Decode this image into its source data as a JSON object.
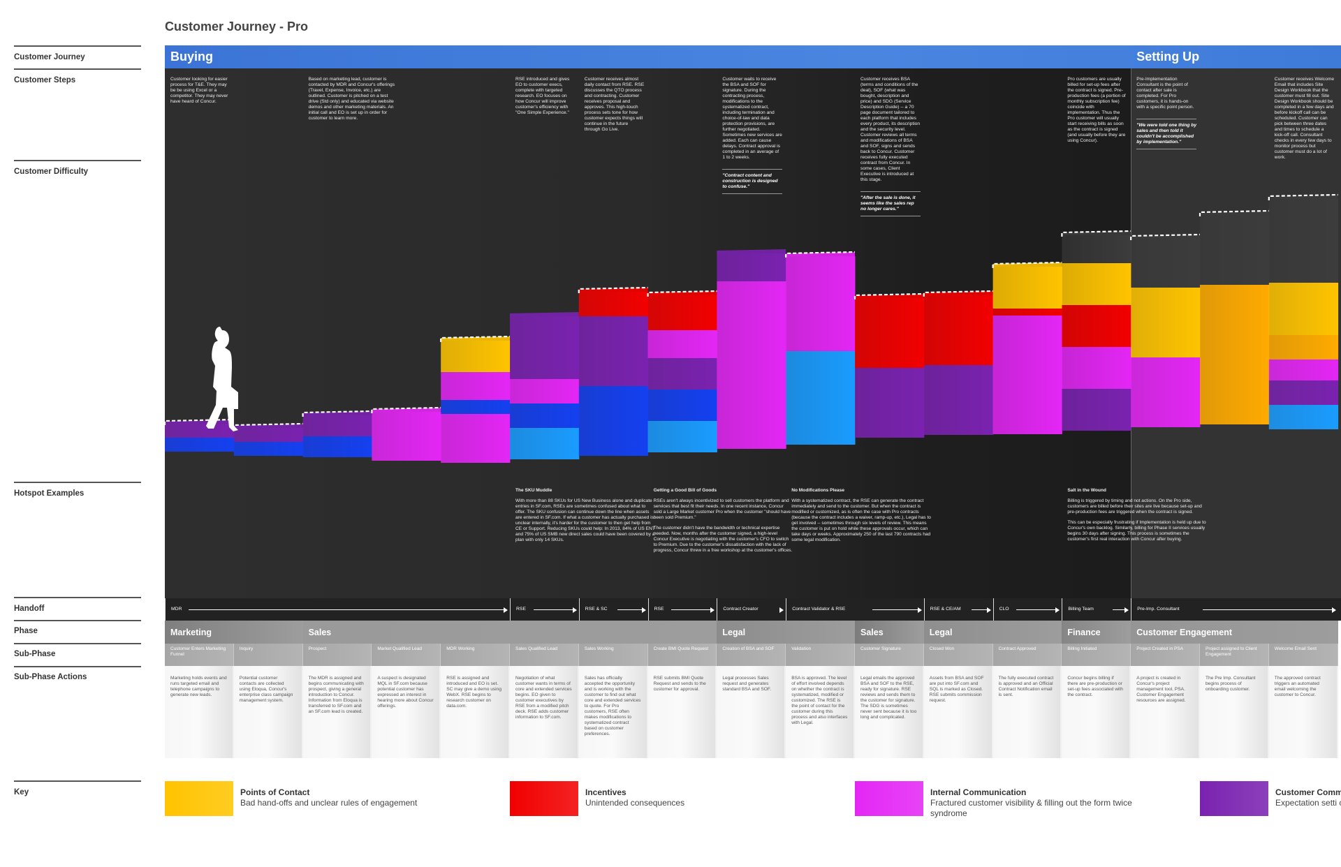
{
  "title": "Customer Journey - Pro",
  "row_labels": {
    "customer_journey": "Customer Journey",
    "customer_steps": "Customer Steps",
    "customer_difficulty": "Customer Difficulty",
    "hotspot_examples": "Hotspot Examples",
    "handoff": "Handoff",
    "phase": "Phase",
    "sub_phase": "Sub-Phase",
    "sub_phase_actions": "Sub-Phase Actions",
    "key": "Key"
  },
  "journey_stages": [
    {
      "label": "Buying",
      "start_col": 0
    },
    {
      "label": "Setting Up",
      "start_col": 14
    }
  ],
  "columns": [
    {
      "sub_phase": "Customer Enters Marketing Funnel",
      "action": "Marketing holds events and runs targeted email and telephone campaigns to generate new leads.",
      "step": "Customer looking for easier process for T&E. They may be be using Excel or a competitor. They may never have heard of Concur."
    },
    {
      "sub_phase": "Inquiry",
      "action": "Potential customer contacts are collected using Eloqua, Concur's enterprise class campaign management system."
    },
    {
      "sub_phase": "Prospect",
      "action": "The MDR is assigned and begins communicating with prospect, giving a general introduction to Concur. Information from Eloqua is transferred to SF.com and an SF.com lead is created.",
      "step": "Based on marketing lead, customer is contacted by MDR and Concur's offerings (Travel, Expense, Invoice, etc.) are outlined. Customer is pitched on a test drive (Std only) and educated via website demos and other marketing materials.  An initial call and EO is set up in order for customer to learn more.",
      "wide": true
    },
    {
      "sub_phase": "Market Qualified Lead",
      "action": "A suspect is designated MQL in SF.com because potential customer has expressed an interest in hearing more about Concur offerings."
    },
    {
      "sub_phase": "MDR Working",
      "action": "RSE is assigned and introduced and EO is set. SC may give a demo using WebX. RSE begins to research customer on data.com."
    },
    {
      "sub_phase": "Sales Qualified Lead",
      "action": "Negotiation of what customer wants in terms of core and  extended services begins. EO given to customer executives by RSE from a modified pitch deck. RSE adds customer information to SF.com.",
      "step": "RSE introduced and gives EO to customer execs, complete with targeted research. EO focuses on how Concur will improve customer's efficiency with \"One Simple Experience.\"",
      "hotspot": {
        "title": "The SKU Muddle",
        "paragraphs": [
          "With more than 88 SKUs for US New Business alone and duplicate entries in SF.com, RSEs are sometimes confused about what to offer. The SKU confusion can continue down the line when assets are entered in SF.com. If what a customer has actually purchased is unclear internally, it's harder for the customer to then get help from CE or Support. Reducing SKUs could help:  In 2013, 84% of US ENT and 75% of US SMB new direct sales could have been covered by a plan with only 14 SKUs."
        ]
      }
    },
    {
      "sub_phase": "Sales Working",
      "action": "Sales has officially accepted the opportunity and is working with the customer to find out what core and extended services to quote. For Pro customers, RSE often makes modifications to systematized contract based on customer preferences.",
      "step": "Customer receives almost daily contact from RSE.  RSE discusses the QTO process and contracting. Customer receives proposal and approves. This high-touch process sets tone for how customer expects things will continue in the future through Go Live."
    },
    {
      "sub_phase": "Create BMI Quote Request",
      "action": "RSE submits BMI Quote Request and sends to the customer for approval.",
      "hotspot": {
        "title": "Getting a Good Bill of Goods",
        "paragraphs": [
          "RSEs aren't always incentivized to sell customers the platform and services that best fit their needs. In one recent instance, Concur sold a Large Market customer Pro when the customer \"should have been sold Premium.\"",
          "The customer didn't have the bandwidth or technical expertise needed. Now, months after the customer signed, a high-level Concur Executive is negotiating with the customer's CFO to switch to Premium. Due to the customer's dissatisfaction with the lack of progress, Concur threw in a free workshop at the customer's offices."
        ]
      }
    },
    {
      "sub_phase": "Creation of BSA and SOF",
      "action": "Legal processes Sales request and generates standard BSA and SOF.",
      "step": "Customer waits to receive the BSA and SOF for signature. During the contracting process, modifications to the systematized contract, including termination and choice-of-law and data protection provisions, are further negotiated. Sometimes new services are added. Each can cause delays. Contract approval is completed in an average of 1 to 2 weeks.",
      "quote": "\"Contract content and construction is designed to confuse.\""
    },
    {
      "sub_phase": "Validation",
      "action": "BSA is approved. The level of effort involved depends on whether the contract is systematized, modified or customized. The RSE is the point of contact for the customer during this process and also interfaces with Legal.",
      "hotspot": {
        "title": "No Modifications Please",
        "paragraphs": [
          "With a systematized contract, the RSE can generate the contract immediately and send to the customer.  But when the contract is modified or customized, as is often the case with Pro contracts (because the contract includes a waiver, ramp-up, etc.), Legal has to get involved -- sometimes through six levels of review. This means the customer is put on hold while these approvals occur, which can take days or weeks. Approximately 250 of the last 790 contracts had some legal modification."
        ]
      }
    },
    {
      "sub_phase": "Customer Signature",
      "action": "Legal emails the approved BSA and SOF to the RSE, ready for signature.  RSE reviews and sends them to the customer for signature. The SDG is sometimes never sent because it is too long and complicated.",
      "step": "Customer receives BSA (terms and conditions of the deal), SOF (what was bought, description and price) and SDG (Service Description Guide) -- a 70 page document tailored to each platform that includes every product, its description and the security level.  Customer reviews all terms and modifications of BSA and SOF, signs and sends back to Concur. Customer receives fully executed contract from Concur. In some cases, Client Executive is introduced at this stage.",
      "quote": "\"After the sale is done, it seems like the sales rep no longer cares.\""
    },
    {
      "sub_phase": "Closed Won",
      "action": "Assets from BSA and SOF are put into SF.com and SQL is marked as Closed. RSE submits commission request."
    },
    {
      "sub_phase": "Contract Approved",
      "action": "The fully executed contract is approved and an Official Contract Notification email is sent."
    },
    {
      "sub_phase": "Billing Initiated",
      "action": "Concur begins billing if there are pre-production or set-up fees associated with the contract.",
      "step": "Pro customers are usually billed for set-up fees after the contract is signed. Pre-production fees (a portion of monthly subscription fee) coincide with implementation. Thus the Pro customer will usually start receiving bills as soon as the contract is signed (and usually before they are using Concur).",
      "hotspot": {
        "title": "Salt in the Wound",
        "paragraphs": [
          "Billing is triggered by timing and not actions. On the Pro side, customers are billed before their sites are live because set-up and pre-production fees are triggered when the contract is signed.",
          "This can be especially frustrating if Implementation is held up due to Concur's own backlog. Similarly, billing for Phase II services usually begins 30 days after signing. This process is sometimes the customer's first real interaction with Concur after buying."
        ]
      }
    },
    {
      "sub_phase": "Project Created in PSA",
      "action": "A project is created in Concur's project management tool, PSA. Customer Engagement resources are assigned.",
      "step": "Pre-Implementation Consultant  is the point of contact after sale is completed. For Pro customers, it is hands-on with a specific point person.",
      "quote": "\"We were told one thing by sales and then told it couldn't be accomplished by implementation.\""
    },
    {
      "sub_phase": "Project assigned to Client Engagement",
      "action": "The Pre Imp. Consultant begins process of onboarding customer."
    },
    {
      "sub_phase": "Welcome Email Sent",
      "action": "The approved contract triggers an automated email welcoming the customer to Concur.",
      "step": "Customer receives Welcome Email that includes Site Design Workbook that the customer must fill out.  Site Design Workbook should be completed in a few days and before kickoff call can be scheduled. Customer can pick between three dates and times to schedule a kick-off call. Consultant checks in every few days to monitor process but customer must do a lot of work."
    }
  ],
  "handoffs": [
    {
      "label": "MDR",
      "span": 5
    },
    {
      "label": "RSE",
      "span": 1
    },
    {
      "label": "RSE & SC",
      "span": 1
    },
    {
      "label": "RSE",
      "span": 1
    },
    {
      "label": "Contract Creator",
      "span": 1
    },
    {
      "label": "Contract Validator & RSE",
      "span": 2
    },
    {
      "label": "RSE & CE/AM",
      "span": 1
    },
    {
      "label": "CLO",
      "span": 1
    },
    {
      "label": "Billing Team",
      "span": 1
    },
    {
      "label": "Pre-Imp. Consultant",
      "span": 3
    }
  ],
  "phases": [
    {
      "label": "Marketing",
      "span": 2,
      "color": "#7f7f7f"
    },
    {
      "label": "Sales",
      "span": 6,
      "color": "#9a9a9a"
    },
    {
      "label": "Legal",
      "span": 2,
      "color": "#8c8c8c"
    },
    {
      "label": "Sales",
      "span": 1,
      "color": "#7c7c7c"
    },
    {
      "label": "Legal",
      "span": 2,
      "color": "#8e8e8e"
    },
    {
      "label": "Finance",
      "span": 1,
      "color": "#858585"
    },
    {
      "label": "Customer Engagement",
      "span": 3,
      "color": "#959595"
    }
  ],
  "categories": {
    "contact": "#ffc400",
    "incentives": "#f20000",
    "internal": "#e426f5",
    "customer": "#7a22b0",
    "blue": "#1440f0",
    "lightblue": "#1a9cff",
    "orange": "#ffab00",
    "ghost": "#3c3c3c"
  },
  "difficulty": [
    {
      "segments": [
        [
          "blue",
          1
        ],
        [
          "customer",
          1
        ]
      ],
      "dashed": true
    },
    {
      "segments": [
        [
          "blue",
          1
        ],
        [
          "customer",
          1
        ]
      ],
      "dashed": true
    },
    {
      "segments": [
        [
          "blue",
          1.5
        ],
        [
          "customer",
          1.5
        ]
      ],
      "dashed": true
    },
    {
      "segments": [
        [
          "internal",
          3.5
        ]
      ],
      "dashed": true
    },
    {
      "segments": [
        [
          "internal",
          3.5
        ],
        [
          "blue",
          1
        ],
        [
          "internal",
          2
        ],
        [
          "contact",
          2.25
        ]
      ],
      "dashed": true
    },
    {
      "segments": [
        [
          "lightblue",
          2.25
        ],
        [
          "blue",
          1.75
        ],
        [
          "internal",
          1.75
        ],
        [
          "customer",
          4.5
        ]
      ],
      "dashed": false
    },
    {
      "segments": [
        [
          "blue",
          5
        ],
        [
          "customer",
          5
        ],
        [
          "incentives",
          1.75
        ]
      ],
      "dashed": true
    },
    {
      "segments": [
        [
          "lightblue",
          2.25
        ],
        [
          "blue",
          2.25
        ],
        [
          "customer",
          2.25
        ],
        [
          "internal",
          2
        ],
        [
          "incentives",
          2.5
        ]
      ],
      "dashed": true
    },
    {
      "segments": [
        [
          "internal",
          12
        ],
        [
          "customer",
          2
        ]
      ],
      "dashed": false
    },
    {
      "segments": [
        [
          "lightblue",
          6.7
        ],
        [
          "internal",
          6.8
        ]
      ],
      "dashed": true
    },
    {
      "segments": [
        [
          "customer",
          5
        ],
        [
          "incentives",
          5
        ]
      ],
      "dashed": true
    },
    {
      "segments": [
        [
          "customer",
          5
        ],
        [
          "incentives",
          5
        ]
      ],
      "dashed": true
    },
    {
      "segments": [
        [
          "internal",
          8.5
        ],
        [
          "incentives",
          0.5
        ],
        [
          "contact",
          3
        ]
      ],
      "dashed": true
    },
    {
      "segments": [
        [
          "customer",
          3
        ],
        [
          "internal",
          3
        ],
        [
          "incentives",
          3
        ],
        [
          "contact",
          3
        ],
        [
          "ghost",
          2
        ]
      ],
      "dashed": true
    },
    {
      "segments": [
        [
          "internal",
          5
        ],
        [
          "contact",
          5
        ],
        [
          "ghost",
          3.5
        ]
      ],
      "dashed": true
    },
    {
      "segments": [
        [
          "orange",
          10
        ],
        [
          "ghost",
          5
        ]
      ],
      "dashed": true
    },
    {
      "segments": [
        [
          "lightblue",
          1.75
        ],
        [
          "customer",
          1.75
        ],
        [
          "internal",
          1.5
        ],
        [
          "orange",
          1.75
        ],
        [
          "contact",
          3.75
        ],
        [
          "ghost",
          6
        ]
      ],
      "dashed": true
    }
  ],
  "key": [
    {
      "title": "Points of Contact",
      "desc": "Bad hand-offs and unclear rules of engagement",
      "color": "#ffc400"
    },
    {
      "title": "Incentives",
      "desc": "Unintended consequences",
      "color": "#f20000"
    },
    {
      "title": "Internal Communication",
      "desc": "Fractured customer visibility & filling out the form twice syndrome",
      "color": "#e426f5"
    },
    {
      "title": "Customer Comm",
      "desc": "Expectation setti communication c",
      "color": "#7a22b0"
    }
  ]
}
